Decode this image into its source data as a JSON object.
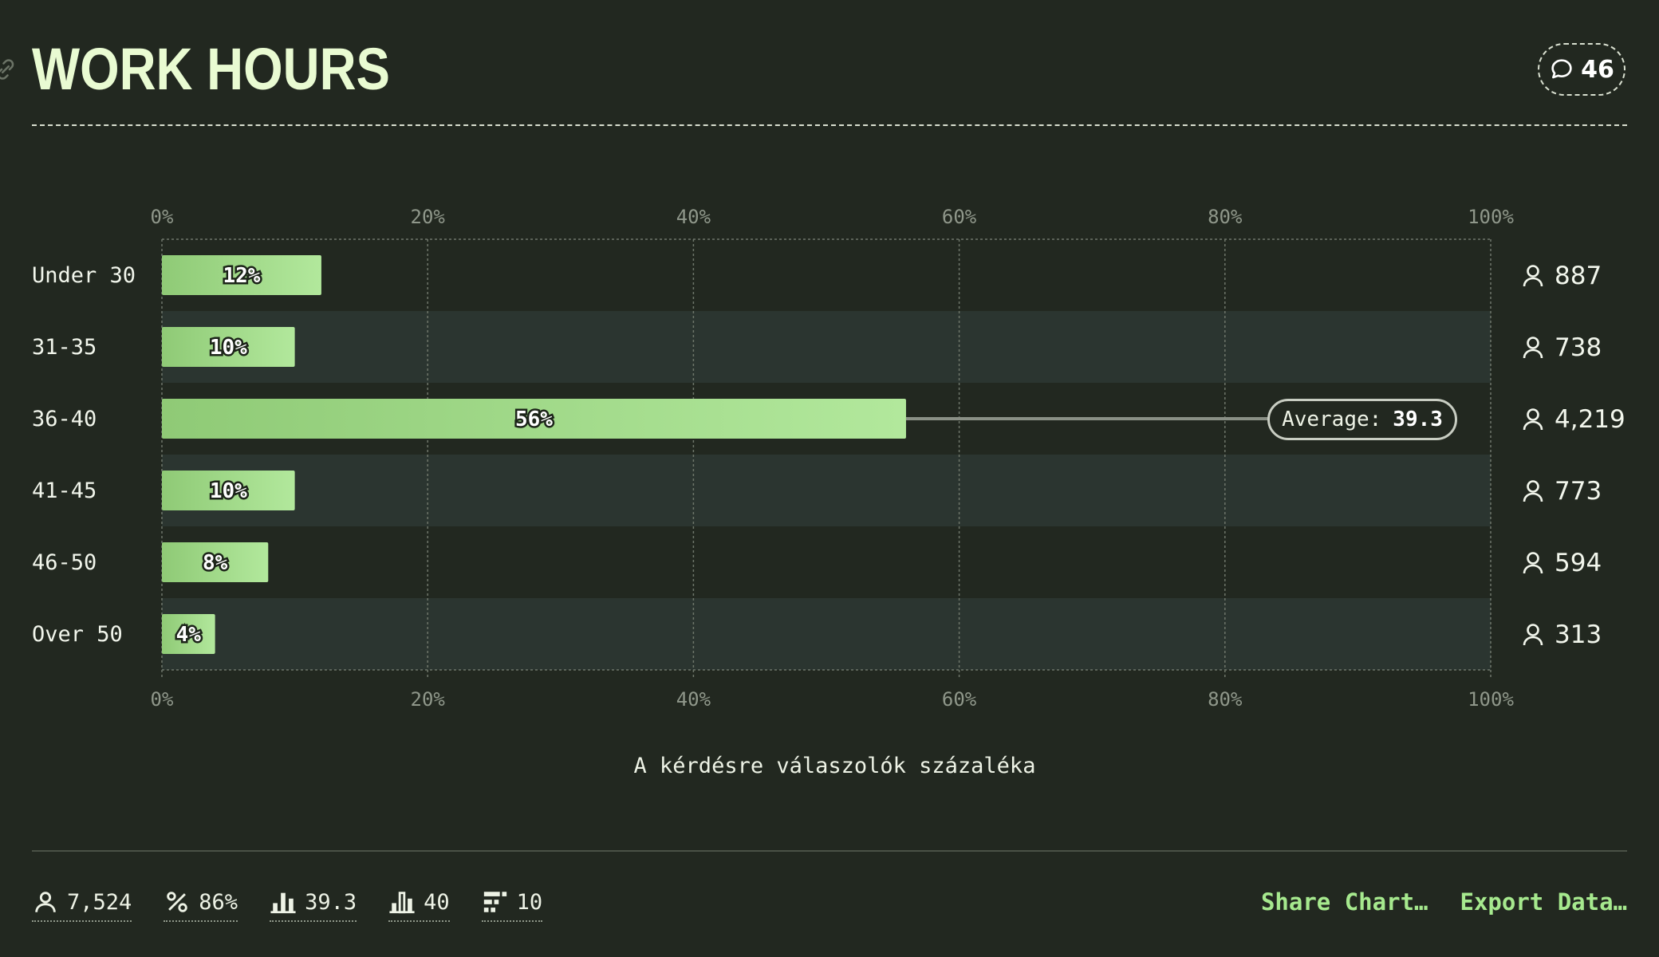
{
  "header": {
    "title": "WORK HOURS",
    "comment_count": "46"
  },
  "chart_data": {
    "type": "bar",
    "orientation": "horizontal",
    "categories": [
      "Under 30",
      "31-35",
      "36-40",
      "41-45",
      "46-50",
      "Over 50"
    ],
    "values": [
      12,
      10,
      56,
      10,
      8,
      4
    ],
    "value_labels": [
      "12%",
      "10%",
      "56%",
      "10%",
      "8%",
      "4%"
    ],
    "counts": [
      "887",
      "738",
      "4,219",
      "773",
      "594",
      "313"
    ],
    "xlim": [
      0,
      100
    ],
    "xticks": [
      "0%",
      "20%",
      "40%",
      "60%",
      "80%",
      "100%"
    ],
    "xlabel": "A kérdésre válaszolók százaléka",
    "grid": true,
    "average": {
      "label": "Average:",
      "value": "39.3",
      "category": "36-40"
    },
    "colors": {
      "bar_start": "#8fca76",
      "bar_end": "#b2e89c",
      "stripe": "#2b3530",
      "background": "#222820"
    }
  },
  "footer": {
    "stats": [
      {
        "icon": "person-icon",
        "value": "7,524"
      },
      {
        "icon": "percent-icon",
        "value": "86%"
      },
      {
        "icon": "bar-chart-icon",
        "value": "39.3"
      },
      {
        "icon": "bar-chart-outline-icon",
        "value": "40"
      },
      {
        "icon": "grid-chart-icon",
        "value": "10"
      }
    ],
    "share_label": "Share Chart…",
    "export_label": "Export Data…"
  }
}
